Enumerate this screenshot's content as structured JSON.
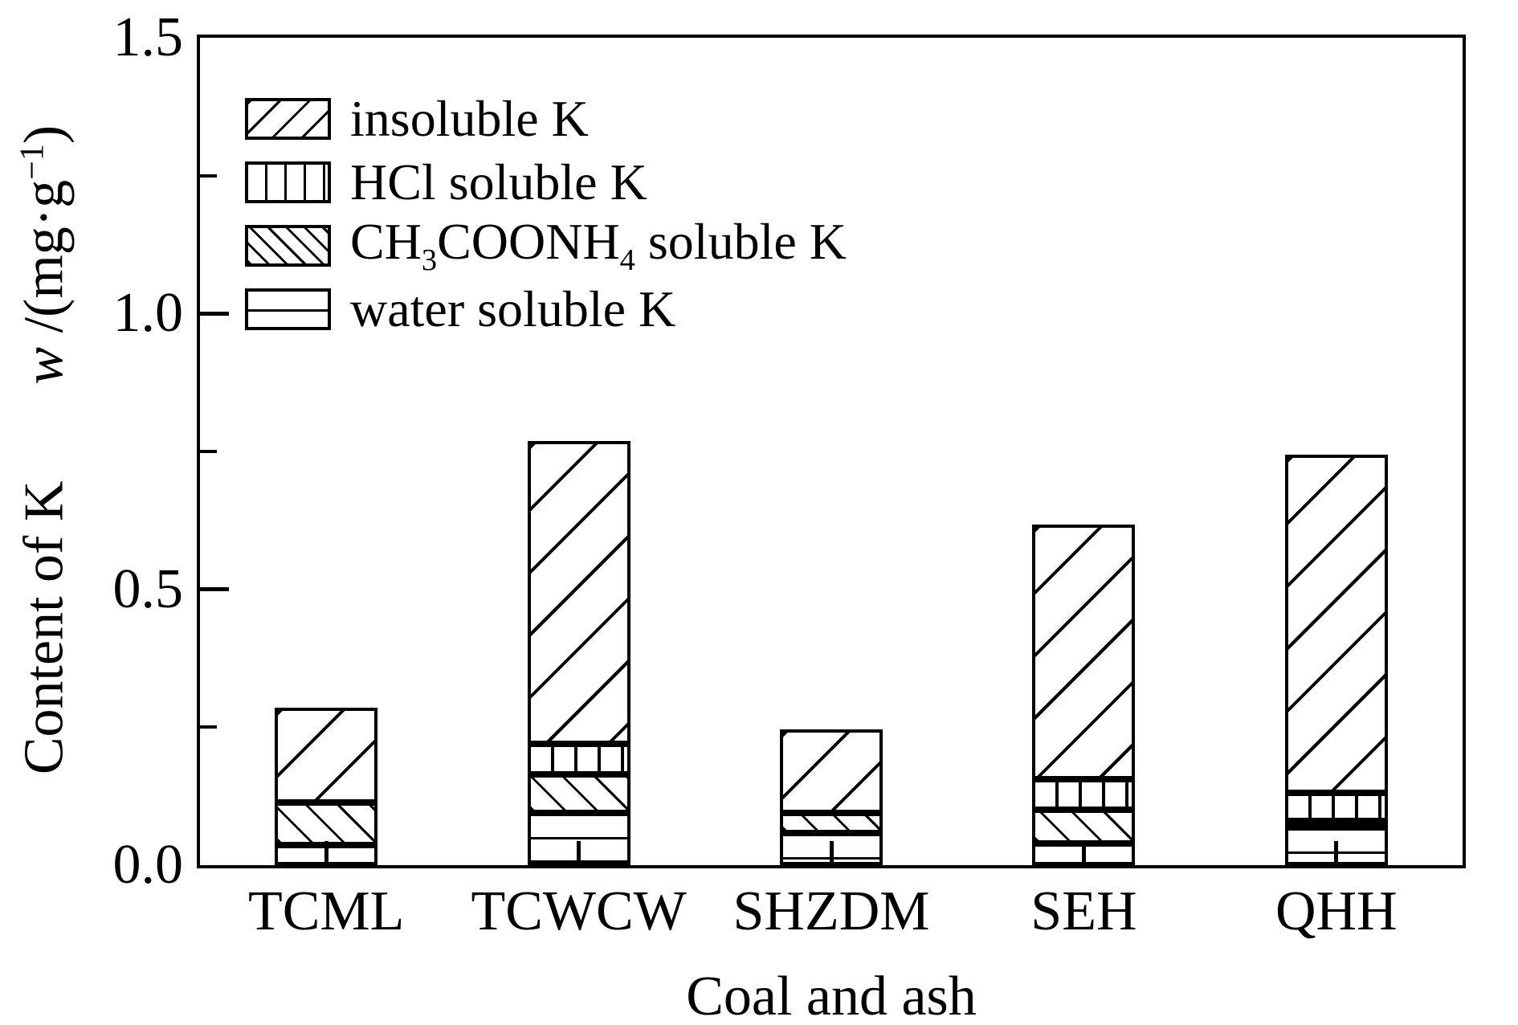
{
  "chart_data": {
    "type": "bar",
    "stacked": true,
    "title": "",
    "xlabel": "Coal and ash",
    "ylabel_text": "Content of K  w /(mg·g−1)",
    "ylabel_tokens": [
      "Content of K",
      {
        "gap": true
      },
      {
        "i": "w"
      },
      " /(mg·g",
      {
        "sup": "−1"
      },
      ")"
    ],
    "categories": [
      "TCML",
      "TCWCW",
      "SHZDM",
      "SEH",
      "QHH"
    ],
    "series": [
      {
        "name": "water soluble K",
        "pattern": "horizontal",
        "values": [
          0.036,
          0.094,
          0.059,
          0.039,
          0.069
        ]
      },
      {
        "name": "CH3COONH4 soluble K",
        "pattern": "backslash",
        "values": [
          0.077,
          0.07,
          0.035,
          0.061,
          0.009
        ]
      },
      {
        "name": "HCl soluble K",
        "pattern": "vertical",
        "values": [
          0.0,
          0.056,
          0.0,
          0.056,
          0.051
        ]
      },
      {
        "name": "insoluble K",
        "pattern": "forward-slash",
        "values": [
          0.173,
          0.549,
          0.152,
          0.461,
          0.612
        ]
      }
    ],
    "totals": [
      0.286,
      0.769,
      0.246,
      0.617,
      0.741
    ],
    "legend": [
      {
        "label": "insoluble K",
        "pattern": "forward-slash",
        "label_tokens": [
          "insoluble K"
        ]
      },
      {
        "label": "HCl soluble K",
        "pattern": "vertical",
        "label_tokens": [
          "HCl soluble K"
        ]
      },
      {
        "label": "CH3COONH4 soluble K",
        "pattern": "backslash",
        "label_tokens": [
          "CH",
          {
            "sub": "3"
          },
          "COONH",
          {
            "sub": "4"
          },
          " soluble K"
        ]
      },
      {
        "label": "water soluble K",
        "pattern": "horizontal",
        "label_tokens": [
          "water soluble K"
        ]
      }
    ],
    "ylim": [
      0,
      1.5
    ],
    "yticks_major": [
      0.0,
      0.5,
      1.0,
      1.5
    ],
    "ytick_labels": [
      "0.0",
      "0.5",
      "1.0",
      "1.5"
    ],
    "yticks_minor": [
      0.25,
      0.75,
      1.25
    ],
    "legend_position": "upper-left",
    "grid": false,
    "colors": {
      "foreground": "#000000",
      "background": "#ffffff"
    }
  }
}
